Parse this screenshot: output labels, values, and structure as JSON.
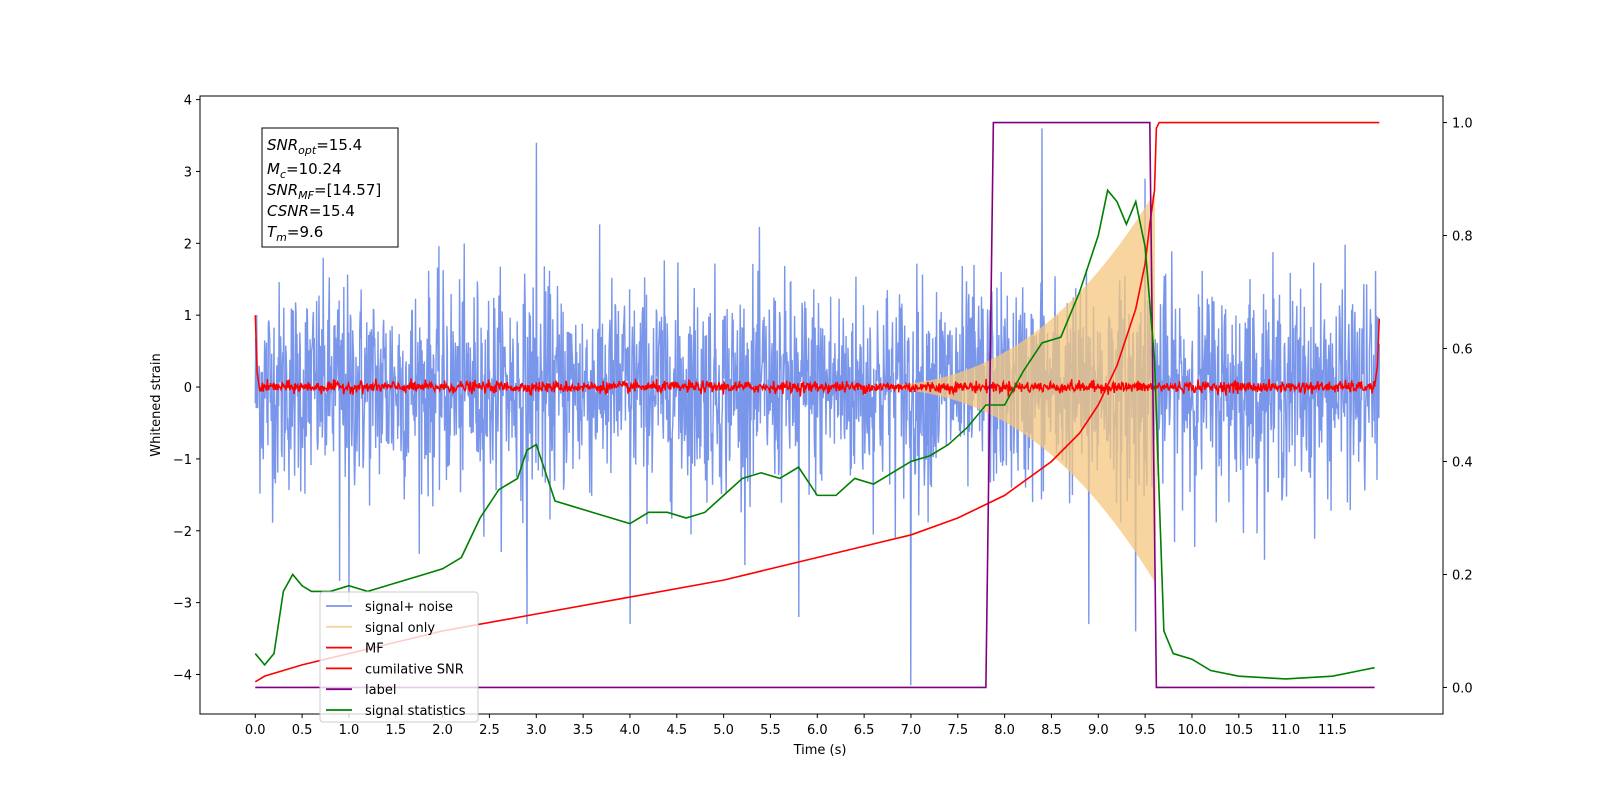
{
  "chart_data": {
    "type": "line",
    "xlabel": "Time (s)",
    "ylabel_left": "Whitened strain",
    "ylabel_right": "",
    "xlim": [
      -0.59,
      12.68
    ],
    "ylim_left": [
      -4.55,
      4.05
    ],
    "ylim_right": [
      -0.047,
      1.047
    ],
    "x_ticks": [
      "0.0",
      "0.5",
      "1.0",
      "1.5",
      "2.0",
      "2.5",
      "3.0",
      "3.5",
      "4.0",
      "4.5",
      "5.0",
      "5.5",
      "6.0",
      "6.5",
      "7.0",
      "7.5",
      "8.0",
      "8.5",
      "9.0",
      "9.5",
      "10.0",
      "10.5",
      "11.0",
      "11.5"
    ],
    "y_ticks_left": [
      "4",
      "3",
      "2",
      "1",
      "0",
      "−1",
      "−2",
      "−3",
      "−4"
    ],
    "y_ticks_right": [
      "1.0",
      "0.8",
      "0.6",
      "0.4",
      "0.2",
      "0.0"
    ],
    "grid": false,
    "legend_placement": "lower-left",
    "info_box": {
      "snr_opt": {
        "main": "SNR",
        "sub": "opt",
        "value": "=15.4"
      },
      "mc": {
        "main": "M",
        "sub": "c",
        "value": "=10.24"
      },
      "snr_mf": {
        "main": "SNR",
        "sub": "MF",
        "value": "=[14.57]"
      },
      "csnr": {
        "main": "CSNR",
        "value": "=15.4"
      },
      "tm": {
        "main": "T",
        "sub": "m",
        "value": "=9.6"
      }
    },
    "series": [
      {
        "name": "signal+ noise",
        "axis": "left",
        "color": "#4169e1",
        "description_values": {
          "x_range": [
            0.0,
            12.0
          ],
          "typical_envelope": [
            -2.2,
            2.2
          ],
          "peaks": [
            [
              0.9,
              -2.7
            ],
            [
              1.0,
              -3.0
            ],
            [
              2.9,
              -3.3
            ],
            [
              3.0,
              3.4
            ],
            [
              4.0,
              -3.3
            ],
            [
              5.8,
              -3.2
            ],
            [
              7.0,
              -4.15
            ],
            [
              8.4,
              3.6
            ],
            [
              8.9,
              -3.3
            ],
            [
              9.4,
              -3.4
            ],
            [
              9.5,
              2.9
            ]
          ]
        }
      },
      {
        "name": "signal only",
        "axis": "left",
        "color": "#f5c77e",
        "chirp": {
          "start": 6.3,
          "end": 9.6,
          "max_amplitude": 2.7
        }
      },
      {
        "name": "MF",
        "axis": "left",
        "color": "#ff0000",
        "x": [
          0.0,
          0.02,
          0.05,
          11.95,
          11.98,
          12.0
        ],
        "y": [
          1.0,
          0.2,
          0.0,
          0.0,
          0.3,
          0.95
        ]
      },
      {
        "name": "cumilative SNR",
        "axis": "right",
        "color": "#ff0000",
        "x": [
          0.0,
          0.1,
          0.5,
          1.0,
          2.0,
          3.0,
          4.0,
          5.0,
          6.0,
          7.0,
          7.5,
          8.0,
          8.5,
          8.8,
          9.0,
          9.2,
          9.4,
          9.5,
          9.55,
          9.6,
          9.62,
          9.65,
          12.0
        ],
        "y": [
          0.01,
          0.02,
          0.04,
          0.06,
          0.1,
          0.13,
          0.16,
          0.19,
          0.23,
          0.27,
          0.3,
          0.34,
          0.4,
          0.45,
          0.5,
          0.57,
          0.67,
          0.75,
          0.82,
          0.88,
          0.99,
          1.0,
          1.0
        ]
      },
      {
        "name": "label",
        "axis": "right",
        "color": "#800080",
        "x": [
          0.0,
          7.8,
          7.88,
          9.55,
          9.62,
          11.95
        ],
        "y": [
          0.0,
          0.0,
          1.0,
          1.0,
          0.0,
          0.0
        ]
      },
      {
        "name": "signal statistics",
        "axis": "right",
        "color": "#008000",
        "x": [
          0.0,
          0.1,
          0.2,
          0.3,
          0.4,
          0.5,
          0.6,
          0.8,
          1.0,
          1.2,
          1.4,
          1.6,
          1.8,
          2.0,
          2.2,
          2.4,
          2.6,
          2.8,
          2.9,
          3.0,
          3.1,
          3.2,
          3.4,
          3.6,
          3.8,
          4.0,
          4.2,
          4.4,
          4.6,
          4.8,
          5.0,
          5.2,
          5.4,
          5.6,
          5.8,
          6.0,
          6.2,
          6.4,
          6.6,
          6.8,
          7.0,
          7.2,
          7.4,
          7.6,
          7.8,
          8.0,
          8.2,
          8.4,
          8.6,
          8.8,
          9.0,
          9.1,
          9.2,
          9.3,
          9.4,
          9.5,
          9.6,
          9.7,
          9.8,
          10.0,
          10.2,
          10.5,
          11.0,
          11.5,
          11.8,
          11.95
        ],
        "y": [
          0.06,
          0.04,
          0.06,
          0.17,
          0.2,
          0.18,
          0.17,
          0.17,
          0.18,
          0.17,
          0.18,
          0.19,
          0.2,
          0.21,
          0.23,
          0.3,
          0.35,
          0.37,
          0.42,
          0.43,
          0.38,
          0.33,
          0.32,
          0.31,
          0.3,
          0.29,
          0.31,
          0.31,
          0.3,
          0.31,
          0.34,
          0.37,
          0.38,
          0.37,
          0.39,
          0.34,
          0.34,
          0.37,
          0.36,
          0.38,
          0.4,
          0.41,
          0.43,
          0.46,
          0.5,
          0.5,
          0.56,
          0.61,
          0.62,
          0.7,
          0.8,
          0.88,
          0.86,
          0.82,
          0.86,
          0.78,
          0.58,
          0.1,
          0.06,
          0.05,
          0.03,
          0.02,
          0.015,
          0.02,
          0.03,
          0.035
        ]
      }
    ]
  }
}
